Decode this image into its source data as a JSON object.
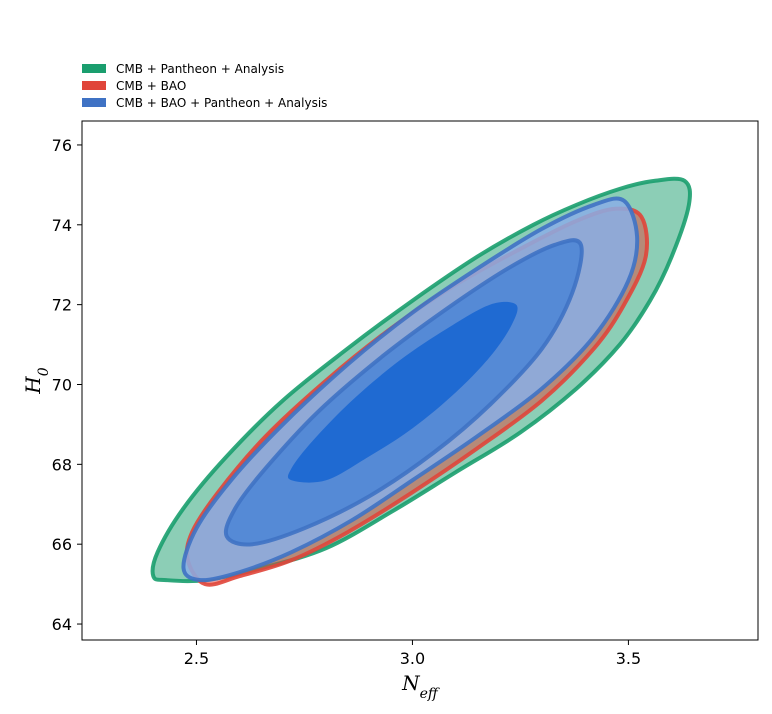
{
  "chart_data": {
    "type": "contour",
    "xlabel": "N_eff",
    "ylabel": "H_0",
    "xlim": [
      2.235,
      3.8
    ],
    "ylim": [
      63.6,
      76.6
    ],
    "x_ticks": [
      2.5,
      3.0,
      3.5
    ],
    "x_tick_labels": [
      "2.5",
      "3.0",
      "3.5"
    ],
    "y_ticks": [
      64,
      66,
      68,
      70,
      72,
      74,
      76
    ],
    "y_tick_labels": [
      "64",
      "66",
      "68",
      "70",
      "72",
      "74",
      "76"
    ],
    "grid": false,
    "legend_position": "top-left, above plot",
    "series": [
      {
        "name": "CMB + Pantheon + Analysis",
        "color": "#1a9e6e",
        "contours": [
          {
            "level": "95%",
            "points": [
              [
                2.4,
                65.2
              ],
              [
                2.43,
                65.1
              ],
              [
                2.52,
                65.1
              ],
              [
                2.65,
                65.4
              ],
              [
                2.8,
                65.9
              ],
              [
                2.95,
                66.8
              ],
              [
                3.1,
                67.8
              ],
              [
                3.25,
                68.8
              ],
              [
                3.38,
                69.9
              ],
              [
                3.48,
                71.0
              ],
              [
                3.55,
                72.1
              ],
              [
                3.6,
                73.2
              ],
              [
                3.64,
                74.5
              ],
              [
                3.63,
                75.1
              ],
              [
                3.56,
                75.1
              ],
              [
                3.48,
                74.9
              ],
              [
                3.38,
                74.5
              ],
              [
                3.28,
                74.0
              ],
              [
                3.15,
                73.2
              ],
              [
                3.0,
                72.1
              ],
              [
                2.85,
                70.9
              ],
              [
                2.7,
                69.6
              ],
              [
                2.57,
                68.2
              ],
              [
                2.47,
                66.9
              ],
              [
                2.41,
                65.8
              ]
            ]
          }
        ]
      },
      {
        "name": "CMB + BAO",
        "color": "#e0453a",
        "contours": [
          {
            "level": "95%",
            "points": [
              [
                2.48,
                65.6
              ],
              [
                2.52,
                65.0
              ],
              [
                2.6,
                65.2
              ],
              [
                2.72,
                65.6
              ],
              [
                2.85,
                66.3
              ],
              [
                3.0,
                67.3
              ],
              [
                3.15,
                68.4
              ],
              [
                3.3,
                69.6
              ],
              [
                3.42,
                70.9
              ],
              [
                3.49,
                72.0
              ],
              [
                3.54,
                73.2
              ],
              [
                3.53,
                74.2
              ],
              [
                3.47,
                74.4
              ],
              [
                3.38,
                74.1
              ],
              [
                3.25,
                73.4
              ],
              [
                3.1,
                72.5
              ],
              [
                2.95,
                71.4
              ],
              [
                2.8,
                70.1
              ],
              [
                2.66,
                68.7
              ],
              [
                2.55,
                67.3
              ],
              [
                2.49,
                66.3
              ]
            ]
          }
        ]
      },
      {
        "name": "CMB + BAO + Pantheon + Analysis",
        "color": "#3f72c4",
        "contours": [
          {
            "level": "95%",
            "points": [
              [
                2.47,
                65.4
              ],
              [
                2.51,
                65.1
              ],
              [
                2.6,
                65.3
              ],
              [
                2.72,
                65.8
              ],
              [
                2.86,
                66.6
              ],
              [
                3.0,
                67.6
              ],
              [
                3.15,
                68.7
              ],
              [
                3.3,
                69.9
              ],
              [
                3.42,
                71.2
              ],
              [
                3.5,
                72.6
              ],
              [
                3.52,
                73.7
              ],
              [
                3.49,
                74.6
              ],
              [
                3.42,
                74.5
              ],
              [
                3.3,
                73.9
              ],
              [
                3.15,
                72.9
              ],
              [
                3.0,
                71.8
              ],
              [
                2.85,
                70.5
              ],
              [
                2.7,
                69.0
              ],
              [
                2.58,
                67.6
              ],
              [
                2.5,
                66.4
              ]
            ]
          },
          {
            "level": "68%",
            "points": [
              [
                2.57,
                66.2
              ],
              [
                2.63,
                66.0
              ],
              [
                2.75,
                66.4
              ],
              [
                2.9,
                67.2
              ],
              [
                3.05,
                68.3
              ],
              [
                3.18,
                69.5
              ],
              [
                3.3,
                70.9
              ],
              [
                3.37,
                72.3
              ],
              [
                3.39,
                73.5
              ],
              [
                3.33,
                73.5
              ],
              [
                3.22,
                72.9
              ],
              [
                3.08,
                71.9
              ],
              [
                2.93,
                70.7
              ],
              [
                2.78,
                69.3
              ],
              [
                2.66,
                67.9
              ],
              [
                2.59,
                66.9
              ]
            ]
          },
          {
            "level": "core",
            "points": [
              [
                2.72,
                67.6
              ],
              [
                2.8,
                67.6
              ],
              [
                2.9,
                68.2
              ],
              [
                3.0,
                68.9
              ],
              [
                3.1,
                69.8
              ],
              [
                3.18,
                70.7
              ],
              [
                3.23,
                71.5
              ],
              [
                3.24,
                72.0
              ],
              [
                3.18,
                72.0
              ],
              [
                3.08,
                71.4
              ],
              [
                2.97,
                70.6
              ],
              [
                2.86,
                69.6
              ],
              [
                2.77,
                68.6
              ],
              [
                2.72,
                67.9
              ]
            ]
          }
        ]
      }
    ]
  }
}
